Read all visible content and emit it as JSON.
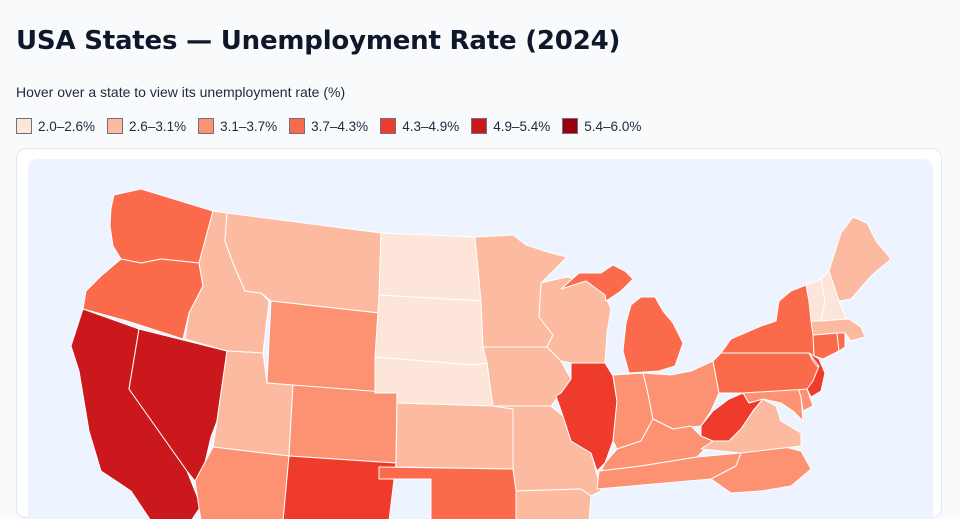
{
  "header": {
    "title": "USA States — Unemployment Rate (2024)",
    "subtitle": "Hover over a state to view its unemployment rate (%)"
  },
  "legend": [
    {
      "label": "2.0–2.6%",
      "color": "#fee5d9"
    },
    {
      "label": "2.6–3.1%",
      "color": "#fcbba1"
    },
    {
      "label": "3.1–3.7%",
      "color": "#fc9272"
    },
    {
      "label": "3.7–4.3%",
      "color": "#fb6a4a"
    },
    {
      "label": "4.3–4.9%",
      "color": "#ef3b2c"
    },
    {
      "label": "4.9–5.4%",
      "color": "#cb181d"
    },
    {
      "label": "5.4–6.0%",
      "color": "#99000d"
    }
  ],
  "map": {
    "background": "#eef4ff",
    "states": [
      {
        "id": "WA",
        "bin": 3
      },
      {
        "id": "OR",
        "bin": 3
      },
      {
        "id": "CA",
        "bin": 5
      },
      {
        "id": "NV",
        "bin": 5
      },
      {
        "id": "ID",
        "bin": 1
      },
      {
        "id": "MT",
        "bin": 1
      },
      {
        "id": "WY",
        "bin": 2
      },
      {
        "id": "UT",
        "bin": 1
      },
      {
        "id": "AZ",
        "bin": 2
      },
      {
        "id": "CO",
        "bin": 2
      },
      {
        "id": "NM",
        "bin": 4
      },
      {
        "id": "ND",
        "bin": 0
      },
      {
        "id": "SD",
        "bin": 0
      },
      {
        "id": "NE",
        "bin": 0
      },
      {
        "id": "KS",
        "bin": 1
      },
      {
        "id": "OK",
        "bin": 3
      },
      {
        "id": "MN",
        "bin": 1
      },
      {
        "id": "IA",
        "bin": 1
      },
      {
        "id": "MO",
        "bin": 1
      },
      {
        "id": "WI",
        "bin": 1
      },
      {
        "id": "IL",
        "bin": 4
      },
      {
        "id": "MI",
        "bin": 3
      },
      {
        "id": "IN",
        "bin": 2
      },
      {
        "id": "OH",
        "bin": 2
      },
      {
        "id": "KY",
        "bin": 2
      },
      {
        "id": "TN",
        "bin": 2
      },
      {
        "id": "AR",
        "bin": 1
      },
      {
        "id": "WV",
        "bin": 4
      },
      {
        "id": "PA",
        "bin": 3
      },
      {
        "id": "NY",
        "bin": 3
      },
      {
        "id": "VA",
        "bin": 1
      },
      {
        "id": "NC",
        "bin": 2
      },
      {
        "id": "MD",
        "bin": 2
      },
      {
        "id": "DE",
        "bin": 2
      },
      {
        "id": "NJ",
        "bin": 4
      },
      {
        "id": "CT",
        "bin": 3
      },
      {
        "id": "RI",
        "bin": 3
      },
      {
        "id": "MA",
        "bin": 1
      },
      {
        "id": "VT",
        "bin": 0
      },
      {
        "id": "NH",
        "bin": 0
      },
      {
        "id": "ME",
        "bin": 1
      }
    ]
  }
}
